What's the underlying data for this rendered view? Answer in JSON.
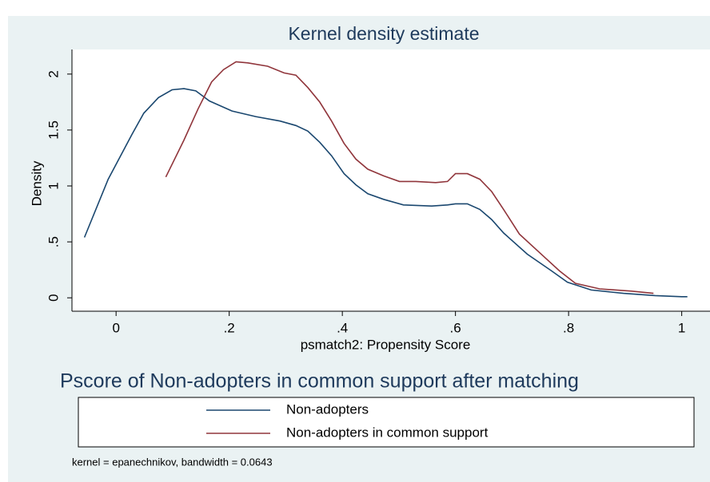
{
  "chart_data": {
    "type": "line",
    "title": "Kernel density estimate",
    "x_label": "psmatch2: Propensity Score",
    "y_label": "Density",
    "legend_title": "Pscore of Non-adopters in common support after matching",
    "note": "kernel = epanechnikov, bandwidth = 0.0643",
    "xlim": [
      -0.078,
      1.05
    ],
    "ylim": [
      -0.12,
      2.22
    ],
    "xticks": [
      0,
      {
        "value": 0.2,
        "label": ".2"
      },
      {
        "value": 0.4,
        "label": ".4"
      },
      {
        "value": 0.6,
        "label": ".6"
      },
      {
        "value": 0.8,
        "label": ".8"
      },
      1
    ],
    "yticks": [
      0,
      {
        "value": 0.5,
        "label": ".5"
      },
      1,
      {
        "value": 1.5,
        "label": "1.5"
      },
      2
    ],
    "grid": false,
    "series": [
      {
        "name": "Non-adopters",
        "color": "#1a476f",
        "x": [
          -0.056,
          -0.014,
          0.028,
          0.049,
          0.075,
          0.099,
          0.12,
          0.141,
          0.165,
          0.205,
          0.247,
          0.29,
          0.318,
          0.339,
          0.36,
          0.381,
          0.403,
          0.424,
          0.445,
          0.473,
          0.508,
          0.558,
          0.586,
          0.6,
          0.621,
          0.643,
          0.664,
          0.685,
          0.727,
          0.77,
          0.798,
          0.84,
          0.897,
          0.953,
          1.0,
          1.01
        ],
        "values": [
          0.54,
          1.06,
          1.46,
          1.65,
          1.79,
          1.86,
          1.87,
          1.85,
          1.76,
          1.67,
          1.62,
          1.58,
          1.54,
          1.49,
          1.39,
          1.27,
          1.11,
          1.01,
          0.93,
          0.88,
          0.83,
          0.82,
          0.83,
          0.84,
          0.84,
          0.79,
          0.7,
          0.58,
          0.39,
          0.24,
          0.14,
          0.07,
          0.04,
          0.02,
          0.01,
          0.01
        ]
      },
      {
        "name": "Non-adopters in common support",
        "color": "#90353b",
        "x": [
          0.088,
          0.12,
          0.145,
          0.169,
          0.19,
          0.212,
          0.233,
          0.268,
          0.297,
          0.318,
          0.339,
          0.36,
          0.381,
          0.403,
          0.424,
          0.445,
          0.473,
          0.501,
          0.53,
          0.565,
          0.586,
          0.6,
          0.621,
          0.643,
          0.664,
          0.685,
          0.713,
          0.756,
          0.784,
          0.812,
          0.855,
          0.911,
          0.95
        ],
        "values": [
          1.08,
          1.41,
          1.69,
          1.93,
          2.04,
          2.11,
          2.1,
          2.07,
          2.01,
          1.99,
          1.88,
          1.75,
          1.58,
          1.38,
          1.24,
          1.15,
          1.09,
          1.04,
          1.04,
          1.03,
          1.04,
          1.11,
          1.11,
          1.06,
          0.95,
          0.79,
          0.57,
          0.37,
          0.24,
          0.13,
          0.08,
          0.06,
          0.04
        ]
      }
    ]
  }
}
